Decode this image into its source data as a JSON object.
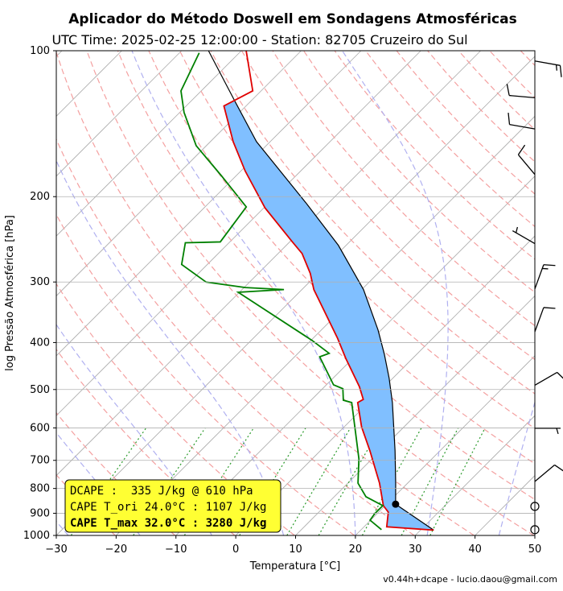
{
  "chart_data": {
    "type": "skewt",
    "title": "Aplicador do Método Doswell em Sondagens Atmosféricas",
    "subtitle": "UTC Time: 2025-02-25 12:00:00 - Station: 82705 Cruzeiro do Sul",
    "xlabel": "Temperatura [°C]",
    "ylabel": "log Pressão Atmosférica [hPa]",
    "xlim": [
      -30,
      50
    ],
    "ylim": [
      1000,
      100
    ],
    "log_y": true,
    "grid": true,
    "xticks": [
      {
        "value": -30,
        "label": "−30"
      },
      {
        "value": -20,
        "label": "−20"
      },
      {
        "value": -10,
        "label": "−10"
      },
      0,
      10,
      20,
      30,
      40,
      50
    ],
    "yticks": [
      1000,
      900,
      800,
      700,
      600,
      500,
      400,
      300,
      200,
      100
    ],
    "temperature": {
      "color": "#e00000",
      "pressure": [
        975,
        960,
        895,
        868,
        780,
        669,
        597,
        532,
        524,
        493,
        431,
        392,
        330,
        311,
        288,
        262,
        247,
        211,
        177,
        154,
        130,
        121,
        100
      ],
      "values": [
        32.2,
        23.8,
        21.6,
        19.7,
        15.3,
        8.3,
        2.9,
        -1.8,
        -1.4,
        -4.2,
        -11.2,
        -15.9,
        -24.9,
        -28.0,
        -31.3,
        -36.0,
        -39.8,
        -49.8,
        -59.3,
        -66.2,
        -73.7,
        -71.4,
        -79.2
      ]
    },
    "dewpoint": {
      "color": "#008000",
      "pressure": [
        973,
        930,
        902,
        868,
        832,
        780,
        695,
        532,
        526,
        498,
        489,
        428,
        421,
        396,
        315,
        311,
        308,
        300,
        276,
        249,
        248,
        210,
        181,
        157,
        134,
        121,
        101
      ],
      "values": [
        23.4,
        19.9,
        19.6,
        19.6,
        15.3,
        11.7,
        7.8,
        -2.8,
        -4.6,
        -6.6,
        -8.8,
        -15.8,
        -14.8,
        -19.8,
        -40.2,
        -33.0,
        -39.8,
        -47.3,
        -54.3,
        -57.3,
        -51.6,
        -53.1,
        -62.5,
        -71.7,
        -79.3,
        -83.4,
        -86.7
      ]
    },
    "parcel": {
      "color": "#000000",
      "pressure": [
        975,
        862,
        780,
        669,
        532,
        474,
        423,
        377,
        311,
        252,
        206,
        154,
        127,
        100
      ],
      "values": [
        32.2,
        21.5,
        18.0,
        12.5,
        4.0,
        -0.6,
        -5.4,
        -10.5,
        -19.7,
        -31.3,
        -43.8,
        -62.3,
        -72.7,
        -85.5
      ]
    },
    "cape_color": "#80bfff",
    "wind": {
      "pressure": [
        973,
        871,
        774,
        601,
        490,
        380,
        310,
        250,
        180,
        145,
        125,
        105
      ],
      "direction": [
        0,
        0,
        50,
        90,
        60,
        20,
        20,
        300,
        320,
        280,
        275,
        100
      ],
      "speed": [
        0,
        0,
        10,
        5,
        10,
        10,
        15,
        5,
        10,
        10,
        10,
        15
      ]
    },
    "annotation": [
      "DCAPE :  335 J/kg @ 610 hPa",
      "CAPE T_ori 24.0°C : 1107 J/kg",
      "CAPE T_max 32.0°C : 3280 J/kg"
    ],
    "box_color": "#ffff33",
    "footer": "v0.44h+dcape  -  lucio.daou@gmail.com"
  }
}
